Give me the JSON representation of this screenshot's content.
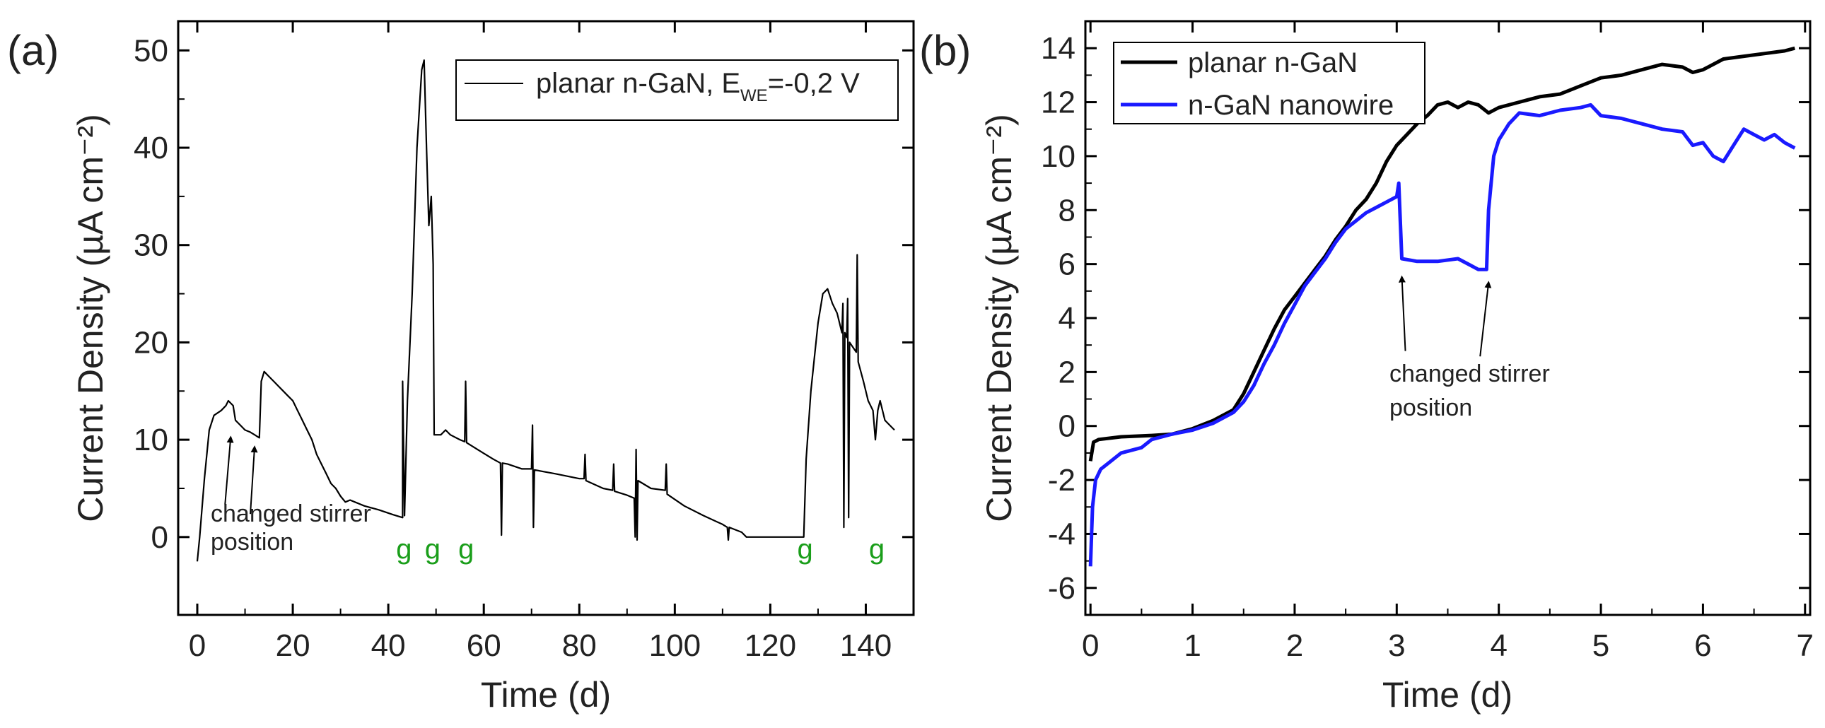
{
  "chart_data": [
    {
      "panel_label": "(a)",
      "type": "line",
      "xlabel": "Time (d)",
      "ylabel": "Current Density (µA cm⁻²)",
      "xlim": [
        -4,
        150
      ],
      "ylim": [
        -8,
        53
      ],
      "xticks": [
        0,
        20,
        40,
        60,
        80,
        100,
        120,
        140
      ],
      "yticks": [
        0,
        10,
        20,
        30,
        40,
        50
      ],
      "legend": {
        "position": "top-right",
        "label_main": "planar n-GaN, E",
        "label_sub": "WE",
        "label_tail": "=-0,2 V"
      },
      "series": [
        {
          "name": "planar n-GaN, E_WE=-0,2 V",
          "color": "#000000",
          "points": [
            [
              0,
              -2.5
            ],
            [
              0.5,
              0
            ],
            [
              1.5,
              6
            ],
            [
              2.5,
              11
            ],
            [
              3.5,
              12.5
            ],
            [
              5,
              13
            ],
            [
              6,
              13.5
            ],
            [
              6.5,
              14
            ],
            [
              7.5,
              13.5
            ],
            [
              8,
              12
            ],
            [
              9,
              11.5
            ],
            [
              10,
              11
            ],
            [
              11,
              10.8
            ],
            [
              12,
              10.5
            ],
            [
              13,
              10.2
            ],
            [
              13.4,
              16
            ],
            [
              14,
              17
            ],
            [
              15,
              16.5
            ],
            [
              16,
              16
            ],
            [
              17,
              15.5
            ],
            [
              18,
              15
            ],
            [
              19,
              14.5
            ],
            [
              20,
              14
            ],
            [
              21,
              13
            ],
            [
              22,
              12
            ],
            [
              23,
              11
            ],
            [
              24,
              10
            ],
            [
              25,
              8.5
            ],
            [
              26,
              7.5
            ],
            [
              27,
              6.5
            ],
            [
              28,
              5.5
            ],
            [
              29,
              5
            ],
            [
              30,
              4.2
            ],
            [
              31,
              3.6
            ],
            [
              32,
              3.8
            ],
            [
              33,
              3.6
            ],
            [
              35,
              3.2
            ],
            [
              38,
              2.8
            ],
            [
              41,
              2.3
            ],
            [
              43,
              2
            ],
            [
              43,
              16
            ],
            [
              43.4,
              2.2
            ],
            [
              44,
              14
            ],
            [
              45,
              25
            ],
            [
              46,
              40
            ],
            [
              47,
              48
            ],
            [
              47.5,
              49
            ],
            [
              48,
              40
            ],
            [
              48.5,
              32
            ],
            [
              49,
              35
            ],
            [
              49.4,
              28
            ],
            [
              49.6,
              10.5
            ],
            [
              51,
              10.5
            ],
            [
              52,
              11
            ],
            [
              53,
              10.5
            ],
            [
              55,
              10
            ],
            [
              56,
              9.8
            ],
            [
              56.2,
              16
            ],
            [
              56.4,
              9.7
            ],
            [
              58,
              9.2
            ],
            [
              60,
              8.6
            ],
            [
              62,
              8
            ],
            [
              63.5,
              7.6
            ],
            [
              63.7,
              0.2
            ],
            [
              63.9,
              7.6
            ],
            [
              65,
              7.5
            ],
            [
              68,
              7
            ],
            [
              70,
              7
            ],
            [
              70.2,
              11.5
            ],
            [
              70.4,
              1
            ],
            [
              70.6,
              6.9
            ],
            [
              75,
              6.5
            ],
            [
              80,
              6
            ],
            [
              81,
              6
            ],
            [
              81.2,
              8.5
            ],
            [
              81.4,
              5.8
            ],
            [
              85,
              5
            ],
            [
              87,
              4.8
            ],
            [
              87.2,
              7.5
            ],
            [
              87.4,
              4.7
            ],
            [
              90,
              4.3
            ],
            [
              91.5,
              4
            ],
            [
              91.7,
              0
            ],
            [
              91.9,
              9
            ],
            [
              92.1,
              -0.3
            ],
            [
              92.3,
              5.8
            ],
            [
              95,
              5
            ],
            [
              98,
              4.8
            ],
            [
              98.2,
              7.5
            ],
            [
              98.4,
              4.4
            ],
            [
              102,
              3.2
            ],
            [
              106,
              2.2
            ],
            [
              110,
              1.3
            ],
            [
              111,
              1
            ],
            [
              111.2,
              -0.3
            ],
            [
              111.4,
              1
            ],
            [
              114,
              0.5
            ],
            [
              115,
              0
            ],
            [
              127,
              0
            ],
            [
              127.5,
              8
            ],
            [
              128.5,
              15
            ],
            [
              130,
              22
            ],
            [
              131,
              25
            ],
            [
              132,
              25.5
            ],
            [
              133,
              24
            ],
            [
              134,
              23
            ],
            [
              135,
              21
            ],
            [
              135.2,
              24
            ],
            [
              135.4,
              1
            ],
            [
              135.6,
              21
            ],
            [
              136,
              20.5
            ],
            [
              136.2,
              24.5
            ],
            [
              136.4,
              2
            ],
            [
              136.6,
              20
            ],
            [
              138,
              19
            ],
            [
              138.2,
              29
            ],
            [
              138.4,
              18
            ],
            [
              139.5,
              16
            ],
            [
              140.5,
              14
            ],
            [
              141.5,
              13
            ],
            [
              142,
              10
            ],
            [
              142.5,
              13
            ],
            [
              143,
              14
            ],
            [
              144,
              12
            ],
            [
              145,
              11.5
            ],
            [
              146,
              11
            ]
          ]
        }
      ],
      "annotations": [
        {
          "text_line1": "changed stirrer",
          "text_line2": "position",
          "arrow_targets": [
            [
              7,
              11
            ],
            [
              12,
              10
            ]
          ]
        }
      ],
      "markers": [
        {
          "label": "g",
          "x": 43
        },
        {
          "label": "g",
          "x": 49
        },
        {
          "label": "g",
          "x": 56
        },
        {
          "label": "g",
          "x": 127
        },
        {
          "label": "g",
          "x": 142
        }
      ]
    },
    {
      "panel_label": "(b)",
      "type": "line",
      "xlabel": "Time (d)",
      "ylabel": "Current Density (µA cm⁻²)",
      "xlim": [
        -0.05,
        7.05
      ],
      "ylim": [
        -7,
        15
      ],
      "xticks": [
        0,
        1,
        2,
        3,
        4,
        5,
        6,
        7
      ],
      "yticks": [
        -6,
        -4,
        -2,
        0,
        2,
        4,
        6,
        8,
        10,
        12,
        14
      ],
      "legend": {
        "position": "top-left"
      },
      "series": [
        {
          "name": "planar n-GaN",
          "color": "#000000",
          "points": [
            [
              0,
              -1.3
            ],
            [
              0.03,
              -0.6
            ],
            [
              0.08,
              -0.5
            ],
            [
              0.3,
              -0.4
            ],
            [
              0.6,
              -0.35
            ],
            [
              0.8,
              -0.3
            ],
            [
              1,
              -0.1
            ],
            [
              1.2,
              0.2
            ],
            [
              1.4,
              0.6
            ],
            [
              1.5,
              1.2
            ],
            [
              1.6,
              2
            ],
            [
              1.7,
              2.8
            ],
            [
              1.8,
              3.6
            ],
            [
              1.9,
              4.3
            ],
            [
              2,
              4.8
            ],
            [
              2.1,
              5.3
            ],
            [
              2.2,
              5.8
            ],
            [
              2.3,
              6.3
            ],
            [
              2.4,
              6.9
            ],
            [
              2.5,
              7.4
            ],
            [
              2.6,
              8
            ],
            [
              2.7,
              8.4
            ],
            [
              2.8,
              9
            ],
            [
              2.9,
              9.8
            ],
            [
              3,
              10.4
            ],
            [
              3.1,
              10.8
            ],
            [
              3.2,
              11.2
            ],
            [
              3.3,
              11.5
            ],
            [
              3.4,
              11.9
            ],
            [
              3.5,
              12
            ],
            [
              3.6,
              11.8
            ],
            [
              3.7,
              12
            ],
            [
              3.8,
              11.9
            ],
            [
              3.9,
              11.6
            ],
            [
              4,
              11.8
            ],
            [
              4.2,
              12
            ],
            [
              4.4,
              12.2
            ],
            [
              4.6,
              12.3
            ],
            [
              4.8,
              12.6
            ],
            [
              5,
              12.9
            ],
            [
              5.2,
              13
            ],
            [
              5.4,
              13.2
            ],
            [
              5.6,
              13.4
            ],
            [
              5.8,
              13.3
            ],
            [
              5.9,
              13.1
            ],
            [
              6,
              13.2
            ],
            [
              6.2,
              13.6
            ],
            [
              6.4,
              13.7
            ],
            [
              6.6,
              13.8
            ],
            [
              6.8,
              13.9
            ],
            [
              6.9,
              14
            ]
          ]
        },
        {
          "name": "n-GaN nanowire",
          "color": "#1a1aff",
          "points": [
            [
              0,
              -5.2
            ],
            [
              0.02,
              -3
            ],
            [
              0.05,
              -2
            ],
            [
              0.1,
              -1.6
            ],
            [
              0.2,
              -1.3
            ],
            [
              0.3,
              -1
            ],
            [
              0.5,
              -0.8
            ],
            [
              0.6,
              -0.5
            ],
            [
              0.8,
              -0.3
            ],
            [
              1,
              -0.15
            ],
            [
              1.2,
              0.1
            ],
            [
              1.4,
              0.5
            ],
            [
              1.5,
              0.9
            ],
            [
              1.6,
              1.5
            ],
            [
              1.7,
              2.3
            ],
            [
              1.8,
              3
            ],
            [
              1.9,
              3.8
            ],
            [
              2,
              4.5
            ],
            [
              2.1,
              5.2
            ],
            [
              2.2,
              5.7
            ],
            [
              2.3,
              6.2
            ],
            [
              2.4,
              6.8
            ],
            [
              2.5,
              7.3
            ],
            [
              2.6,
              7.6
            ],
            [
              2.7,
              7.9
            ],
            [
              2.8,
              8.1
            ],
            [
              2.9,
              8.3
            ],
            [
              3,
              8.5
            ],
            [
              3.02,
              9
            ],
            [
              3.05,
              6.2
            ],
            [
              3.2,
              6.1
            ],
            [
              3.4,
              6.1
            ],
            [
              3.6,
              6.2
            ],
            [
              3.7,
              6
            ],
            [
              3.8,
              5.8
            ],
            [
              3.88,
              5.8
            ],
            [
              3.9,
              8
            ],
            [
              3.95,
              10
            ],
            [
              4,
              10.6
            ],
            [
              4.1,
              11.2
            ],
            [
              4.2,
              11.6
            ],
            [
              4.4,
              11.5
            ],
            [
              4.6,
              11.7
            ],
            [
              4.8,
              11.8
            ],
            [
              4.9,
              11.9
            ],
            [
              5,
              11.5
            ],
            [
              5.2,
              11.4
            ],
            [
              5.4,
              11.2
            ],
            [
              5.6,
              11
            ],
            [
              5.8,
              10.9
            ],
            [
              5.9,
              10.4
            ],
            [
              6,
              10.5
            ],
            [
              6.1,
              10
            ],
            [
              6.2,
              9.8
            ],
            [
              6.3,
              10.4
            ],
            [
              6.4,
              11
            ],
            [
              6.5,
              10.8
            ],
            [
              6.6,
              10.6
            ],
            [
              6.7,
              10.8
            ],
            [
              6.8,
              10.5
            ],
            [
              6.9,
              10.3
            ]
          ]
        }
      ],
      "annotations": [
        {
          "text_line1": "changed stirrer",
          "text_line2": "position",
          "arrow_targets": [
            [
              3.05,
              6
            ],
            [
              3.9,
              5.8
            ]
          ]
        }
      ]
    }
  ]
}
